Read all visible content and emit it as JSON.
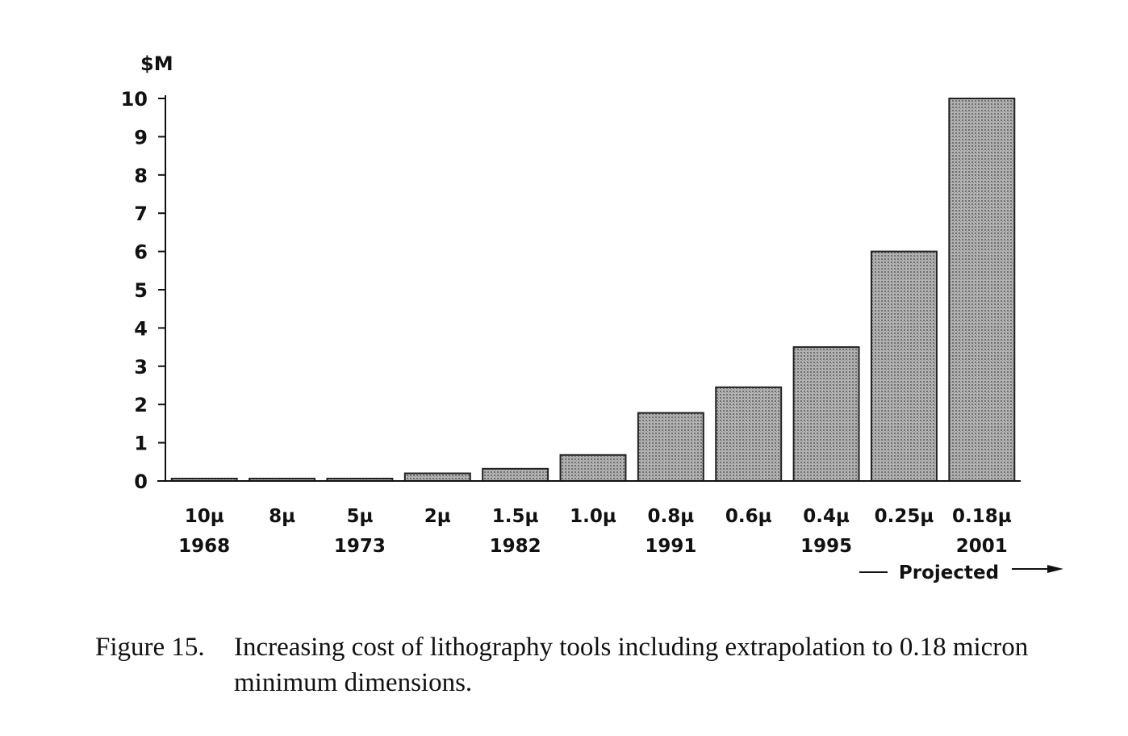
{
  "chart_data": {
    "type": "bar",
    "y_unit_label": "$M",
    "categories": [
      {
        "label": "10µ",
        "year": "1968"
      },
      {
        "label": "8µ",
        "year": ""
      },
      {
        "label": "5µ",
        "year": "1973"
      },
      {
        "label": "2µ",
        "year": ""
      },
      {
        "label": "1.5µ",
        "year": "1982"
      },
      {
        "label": "1.0µ",
        "year": ""
      },
      {
        "label": "0.8µ",
        "year": "1991"
      },
      {
        "label": "0.6µ",
        "year": ""
      },
      {
        "label": "0.4µ",
        "year": "1995"
      },
      {
        "label": "0.25µ",
        "year": ""
      },
      {
        "label": "0.18µ",
        "year": "2001"
      }
    ],
    "values": [
      0.01,
      0.04,
      0.05,
      0.2,
      0.32,
      0.68,
      1.78,
      2.45,
      3.5,
      6.0,
      10.0
    ],
    "ylim": [
      0,
      10
    ],
    "yticks": [
      "0",
      "1",
      "2",
      "3",
      "4",
      "5",
      "6",
      "7",
      "8",
      "9",
      "10"
    ],
    "annotation": "Projected",
    "bar_color": "#a8a8a8",
    "bar_edge_color": "#222222",
    "grid": false
  },
  "caption": {
    "label": "Figure 15.",
    "text": "Increasing cost of lithography tools including extrapolation to 0.18 micron minimum dimensions."
  }
}
